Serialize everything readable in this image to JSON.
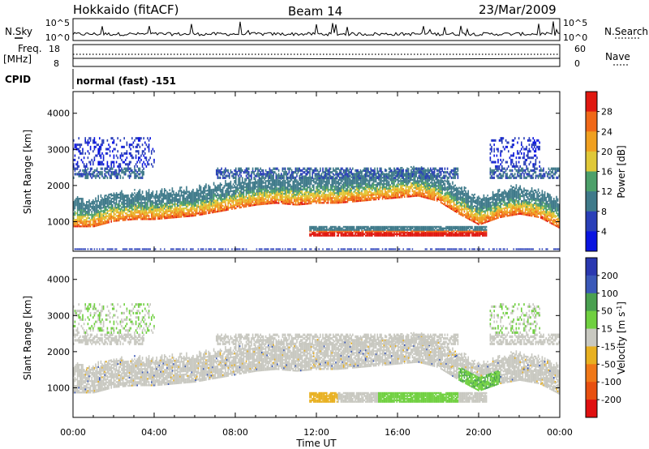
{
  "header": {
    "station": "Hokkaido (fitACF)",
    "beam": "Beam 14",
    "date": "23/Mar/2009"
  },
  "top_panel": {
    "left_label": "N.Sky",
    "right_label": "N.Search",
    "left_ticks": [
      "10^5",
      "10^0"
    ],
    "right_ticks": [
      "10^5",
      "10^0"
    ]
  },
  "freq_panel": {
    "left_label_1": "Freq.",
    "left_label_2": "[MHz]",
    "left_ticks": [
      "18",
      "8"
    ],
    "right_ticks": [
      "60",
      "0"
    ],
    "right_label": "Nave"
  },
  "cpid_panel": {
    "label": "CPID",
    "value": "normal (fast) -151"
  },
  "colors": {
    "power_scale": [
      "#0a14e0",
      "#2a3fb8",
      "#3f7a8a",
      "#4da06a",
      "#e0c838",
      "#f0a020",
      "#f06818",
      "#e01810"
    ],
    "velocity_scale": [
      "#2a38b0",
      "#3a58b8",
      "#4aa050",
      "#70d040",
      "#c8c8c0",
      "#e8b020",
      "#f07818",
      "#e85010",
      "#e01010"
    ]
  },
  "chart_data": [
    {
      "type": "heatmap",
      "name": "power",
      "ylabel": "Slant Range [km]",
      "ylim": [
        180,
        4600
      ],
      "yticks": [
        1000,
        2000,
        3000,
        4000
      ],
      "xlim": [
        0,
        24
      ],
      "colorbar": {
        "label": "Power [dB]",
        "levels": [
          4,
          8,
          12,
          16,
          20,
          24,
          28
        ],
        "range": [
          0,
          32
        ]
      },
      "bands": [
        {
          "desc": "main echo",
          "x": [
            0,
            1,
            2,
            3,
            4,
            5,
            6,
            7,
            8,
            9,
            10,
            11,
            12,
            13,
            14,
            15,
            16,
            17,
            18,
            19,
            20,
            21,
            22,
            23,
            24
          ],
          "y": [
            1150,
            1150,
            1300,
            1350,
            1350,
            1400,
            1450,
            1550,
            1650,
            1750,
            1800,
            1750,
            1800,
            1800,
            1850,
            1900,
            1950,
            2000,
            1850,
            1500,
            1200,
            1400,
            1500,
            1400,
            1100
          ]
        },
        {
          "desc": "near echo",
          "x": [
            11.5,
            20.5
          ],
          "y": [
            650,
            620
          ]
        }
      ]
    },
    {
      "type": "heatmap",
      "name": "velocity",
      "ylabel": "Slant Range [km]",
      "xlabel": "Time UT",
      "ylim": [
        180,
        4600
      ],
      "yticks": [
        1000,
        2000,
        3000,
        4000
      ],
      "xlim": [
        0,
        24
      ],
      "xticks": [
        "00:00",
        "04:00",
        "08:00",
        "12:00",
        "16:00",
        "20:00",
        "00:00"
      ],
      "xtick_values": [
        0,
        4,
        8,
        12,
        16,
        20,
        24
      ],
      "colorbar": {
        "label": "Velocity [m s^-1]",
        "levels": [
          200,
          100,
          50,
          15,
          -15,
          -50,
          -100,
          -200
        ],
        "range": [
          -250,
          250
        ]
      }
    }
  ]
}
